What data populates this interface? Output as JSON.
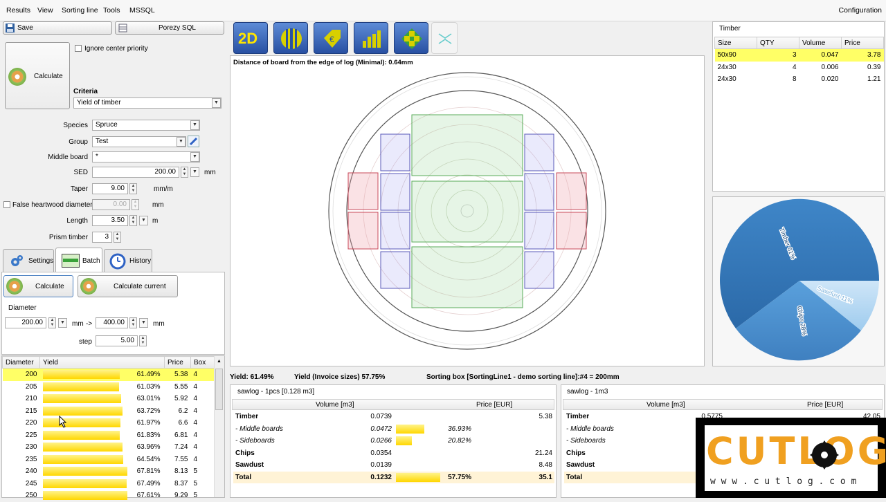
{
  "menu": [
    "Results",
    "View",
    "Sorting line",
    "Tools",
    "MSSQL"
  ],
  "menu_right": "Configuration",
  "buttons": {
    "save": "Save",
    "porezy": "Porezy SQL",
    "calculate": "Calculate",
    "calculate_batch": "Calculate",
    "calculate_current": "Calculate current"
  },
  "ignore_center_priority": "Ignore center priority",
  "criteria": {
    "label": "Criteria",
    "value": "Yield of timber"
  },
  "form": {
    "species_label": "Species",
    "species": "Spruce",
    "group_label": "Group",
    "group": "Test",
    "middle_label": "Middle board",
    "middle": "*",
    "sed_label": "SED",
    "sed": "200.00",
    "sed_unit": "mm",
    "taper_label": "Taper",
    "taper": "9.00",
    "taper_unit": "mm/m",
    "false_label": "False heartwood diameter",
    "false_val": "0.00",
    "false_unit": "mm",
    "length_label": "Length",
    "length": "3.50",
    "length_unit": "m",
    "prism_label": "Prism timber",
    "prism": "3"
  },
  "tabs": [
    "Settings",
    "Batch",
    "History"
  ],
  "batch": {
    "diameter_label": "Diameter",
    "from": "200.00",
    "from_unit": "mm",
    "arrow": "->",
    "to": "400.00",
    "to_unit": "mm",
    "step_label": "step",
    "step": "5.00"
  },
  "result_table": {
    "headers": [
      "Diameter",
      "Yield",
      "Price",
      "Box"
    ],
    "rows": [
      {
        "d": "200",
        "y": "61.49%",
        "yf": 0.6149,
        "p": "5.38",
        "b": "4"
      },
      {
        "d": "205",
        "y": "61.03%",
        "yf": 0.6103,
        "p": "5.55",
        "b": "4"
      },
      {
        "d": "210",
        "y": "63.01%",
        "yf": 0.6301,
        "p": "5.92",
        "b": "4"
      },
      {
        "d": "215",
        "y": "63.72%",
        "yf": 0.6372,
        "p": "6.2",
        "b": "4"
      },
      {
        "d": "220",
        "y": "61.97%",
        "yf": 0.6197,
        "p": "6.6",
        "b": "4"
      },
      {
        "d": "225",
        "y": "61.83%",
        "yf": 0.6183,
        "p": "6.81",
        "b": "4"
      },
      {
        "d": "230",
        "y": "63.96%",
        "yf": 0.6396,
        "p": "7.24",
        "b": "4"
      },
      {
        "d": "235",
        "y": "64.54%",
        "yf": 0.6454,
        "p": "7.55",
        "b": "4"
      },
      {
        "d": "240",
        "y": "67.81%",
        "yf": 0.6781,
        "p": "8.13",
        "b": "5"
      },
      {
        "d": "245",
        "y": "67.49%",
        "yf": 0.6749,
        "p": "8.37",
        "b": "5"
      },
      {
        "d": "250",
        "y": "67.61%",
        "yf": 0.6761,
        "p": "9.29",
        "b": "5"
      }
    ]
  },
  "toolbar": {
    "view_2d": "2D"
  },
  "canvas_title": "Distance of board from the edge of log (Minimal): 0.64mm",
  "status": {
    "yield": "Yield: 61.49%",
    "invoice": "Yield (Invoice sizes) 57.75%",
    "sorting": "Sorting box [SortingLine1 - demo sorting line]:#4 = 200mm"
  },
  "timber": {
    "title": "Timber",
    "headers": [
      "Size",
      "QTY",
      "Volume",
      "Price"
    ],
    "rows": [
      {
        "size": "50x90",
        "qty": "3",
        "vol": "0.047",
        "price": "3.78"
      },
      {
        "size": "24x30",
        "qty": "4",
        "vol": "0.006",
        "price": "0.39"
      },
      {
        "size": "24x30",
        "qty": "8",
        "vol": "0.020",
        "price": "1.21"
      }
    ]
  },
  "pie": {
    "timber": "Timber 61%",
    "chips": "Chips 28%",
    "sawdust": "Sawdust 11%"
  },
  "sawlog1": {
    "title": "sawlog - 1pcs [0.128 m3]",
    "h_vol": "Volume [m3]",
    "h_price": "Price [EUR]",
    "rows": [
      {
        "name": "Timber",
        "vol": "0.0739",
        "pct": "",
        "price": "5.38"
      },
      {
        "name": "- Middle boards",
        "vol": "0.0472",
        "pct": "36.93%",
        "pf": 0.3693,
        "price": ""
      },
      {
        "name": "- Sideboards",
        "vol": "0.0266",
        "pct": "20.82%",
        "pf": 0.2082,
        "price": ""
      },
      {
        "name": "Chips",
        "vol": "0.0354",
        "pct": "",
        "price": "21.24"
      },
      {
        "name": "Sawdust",
        "vol": "0.0139",
        "pct": "",
        "price": "8.48"
      },
      {
        "name": "Total",
        "vol": "0.1232",
        "pct": "57.75%",
        "pf": 0.5775,
        "price": "35.1"
      }
    ]
  },
  "sawlog2": {
    "title": "sawlog - 1m3",
    "h_vol": "Volume [m3]",
    "h_price": "Price [EUR]",
    "rows": [
      {
        "name": "Timber",
        "vol": "0.5775",
        "price": "42.05"
      },
      {
        "name": "- Middle boards"
      },
      {
        "name": "- Sideboards"
      },
      {
        "name": "Chips"
      },
      {
        "name": "Sawdust"
      },
      {
        "name": "Total"
      }
    ]
  },
  "logo": {
    "text": "CUTLOG",
    "url": "w w w . c u t l o g . c o m"
  }
}
